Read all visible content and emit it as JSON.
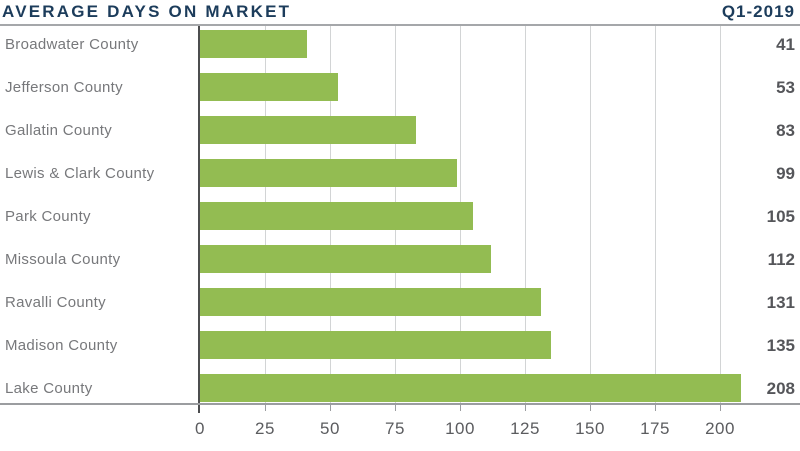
{
  "header": {
    "title": "AVERAGE DAYS ON MARKET",
    "period": "Q1-2019"
  },
  "chart_data": {
    "type": "bar",
    "orientation": "horizontal",
    "title": "AVERAGE DAYS ON MARKET",
    "subtitle": "Q1-2019",
    "categories": [
      "Broadwater County",
      "Jefferson County",
      "Gallatin County",
      "Lewis & Clark County",
      "Park County",
      "Missoula County",
      "Ravalli County",
      "Madison County",
      "Lake County"
    ],
    "values": [
      41,
      53,
      83,
      99,
      105,
      112,
      131,
      135,
      208
    ],
    "xlabel": "",
    "ylabel": "",
    "xticks": [
      0,
      25,
      50,
      75,
      100,
      125,
      150,
      175,
      200
    ],
    "xlim": [
      0,
      227
    ],
    "grid": "vertical-gridlines",
    "legend": "none",
    "value_labels_position": "right-edge",
    "colors": {
      "bar": "#93bc52",
      "title": "#1c3c5b",
      "category_label": "#77787b",
      "value_label": "#55565a",
      "tick_label": "#5b5c5f",
      "gridline": "#d2d4d5",
      "axis_line": "#9b9da0",
      "y_axis_line": "#4c4d4f"
    }
  }
}
